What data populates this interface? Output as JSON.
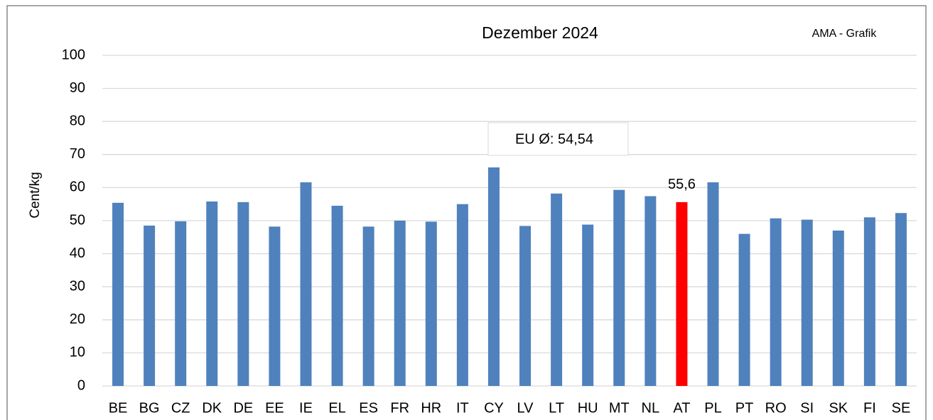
{
  "chart_data": {
    "type": "bar",
    "title": "Dezember 2024",
    "source": "AMA - Grafik",
    "y_label": "Cent/kg",
    "annotation": "EU Ø: 54,54",
    "categories": [
      "BE",
      "BG",
      "CZ",
      "DK",
      "DE",
      "EE",
      "IE",
      "EL",
      "ES",
      "FR",
      "HR",
      "IT",
      "CY",
      "LV",
      "LT",
      "HU",
      "MT",
      "NL",
      "AT",
      "PL",
      "PT",
      "RO",
      "SI",
      "SK",
      "FI",
      "SE"
    ],
    "values": [
      55.4,
      48.5,
      49.8,
      55.8,
      55.6,
      48.2,
      61.6,
      54.5,
      48.2,
      50.0,
      49.7,
      55.0,
      66.1,
      48.4,
      58.2,
      48.8,
      59.3,
      57.4,
      55.6,
      61.6,
      46.0,
      50.7,
      50.3,
      47.0,
      51.0,
      52.3
    ],
    "value_labels": [
      null,
      null,
      null,
      null,
      null,
      null,
      null,
      null,
      null,
      null,
      null,
      null,
      null,
      null,
      null,
      null,
      null,
      null,
      "55,6",
      null,
      null,
      null,
      null,
      null,
      null,
      null
    ],
    "colors": [
      "#4f81bd",
      "#4f81bd",
      "#4f81bd",
      "#4f81bd",
      "#4f81bd",
      "#4f81bd",
      "#4f81bd",
      "#4f81bd",
      "#4f81bd",
      "#4f81bd",
      "#4f81bd",
      "#4f81bd",
      "#4f81bd",
      "#4f81bd",
      "#4f81bd",
      "#4f81bd",
      "#4f81bd",
      "#4f81bd",
      "#ff0000",
      "#4f81bd",
      "#4f81bd",
      "#4f81bd",
      "#4f81bd",
      "#4f81bd",
      "#4f81bd",
      "#4f81bd"
    ],
    "ylim": [
      0,
      100
    ],
    "yticks": [
      0,
      10,
      20,
      30,
      40,
      50,
      60,
      70,
      80,
      90,
      100
    ],
    "grid": true
  }
}
